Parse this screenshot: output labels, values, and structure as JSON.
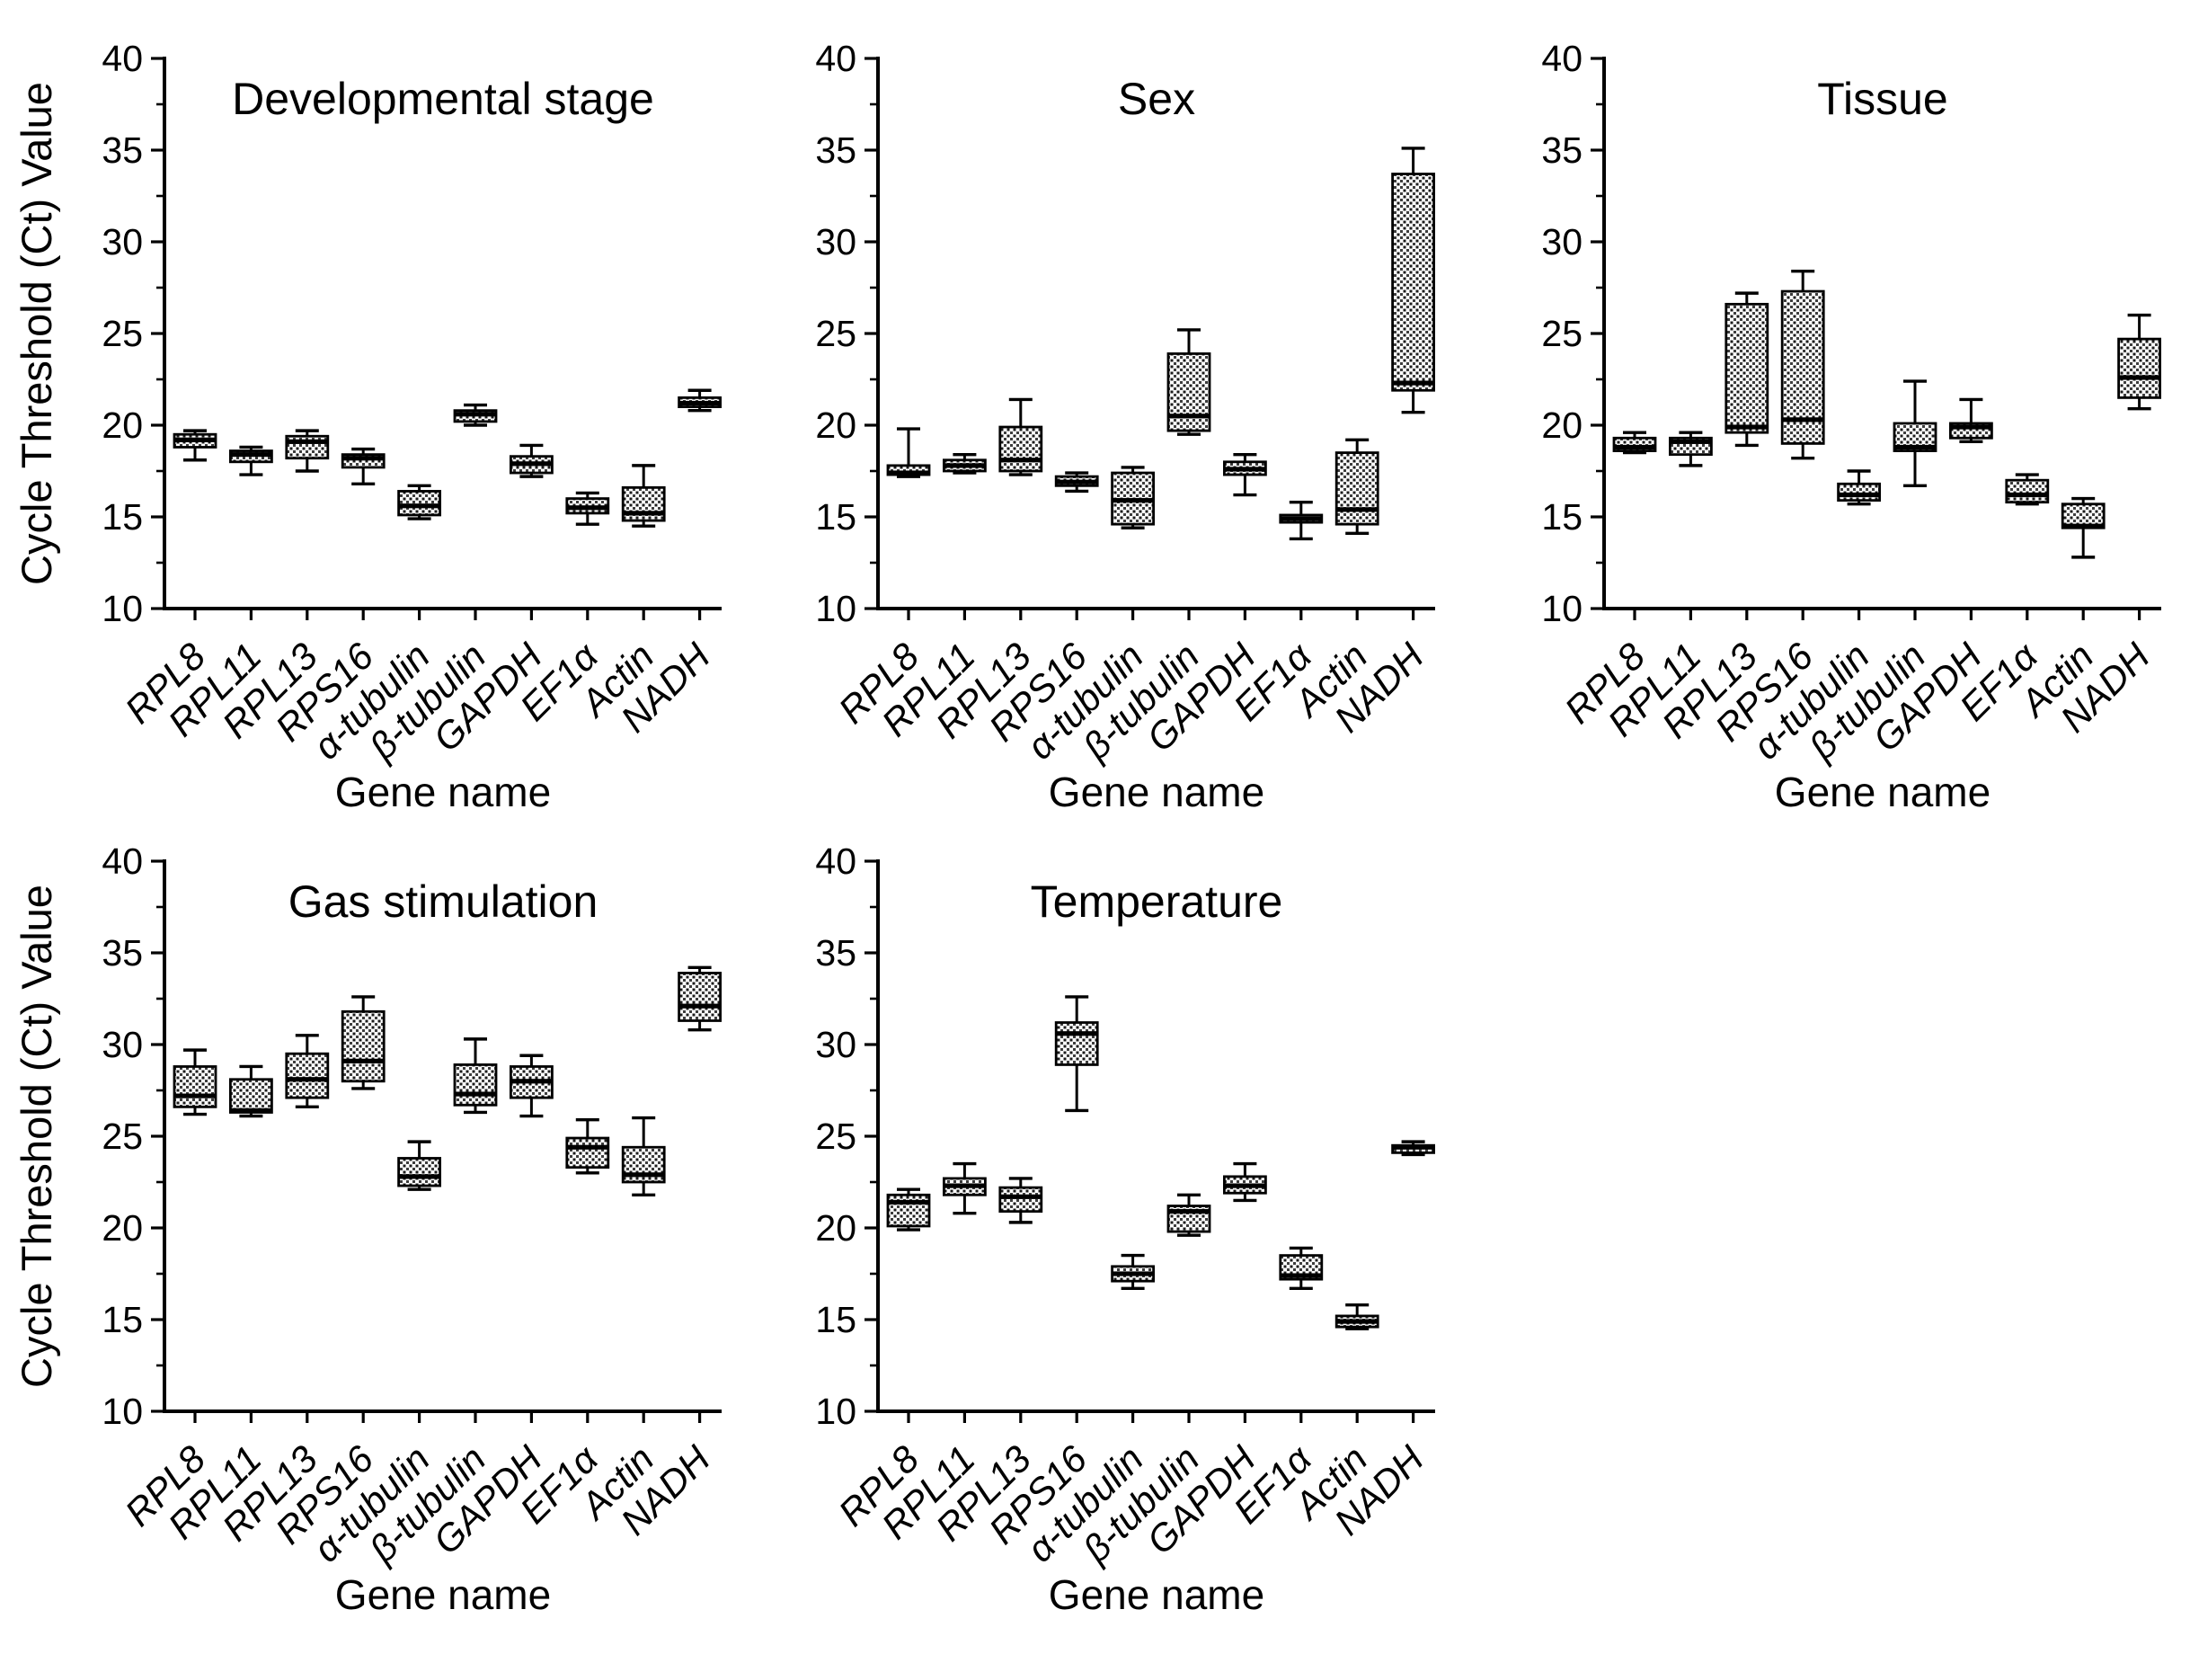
{
  "figure": {
    "ylabel": "Cycle Threshold (Ct) Value",
    "xlabel": "Gene name",
    "genes": [
      "RPL8",
      "RPL11",
      "RPL13",
      "RPS16",
      "α-tubulin",
      "β-tubulin",
      "GAPDH",
      "EF1α",
      "Actin",
      "NADH"
    ]
  },
  "colors": {
    "ink": "#000000",
    "background": "#ffffff"
  },
  "chart_data": [
    {
      "type": "box",
      "title": "Developmental stage",
      "row": 0,
      "col": 0,
      "show_ylabel": true,
      "xlabel": "Gene name",
      "ylabel": "Cycle Threshold (Ct) Value",
      "ylim": [
        10,
        40
      ],
      "yticks_major": [
        10,
        15,
        20,
        25,
        30,
        35,
        40
      ],
      "yticks_minor": [
        12.5,
        17.5,
        22.5,
        27.5,
        32.5,
        37.5
      ],
      "grid": false,
      "boxes": [
        {
          "gene": "RPL8",
          "low": 18.1,
          "q1": 18.8,
          "median": 19.2,
          "q3": 19.5,
          "high": 19.7
        },
        {
          "gene": "RPL11",
          "low": 17.3,
          "q1": 18.0,
          "median": 18.4,
          "q3": 18.6,
          "high": 18.8
        },
        {
          "gene": "RPL13",
          "low": 17.5,
          "q1": 18.2,
          "median": 19.1,
          "q3": 19.4,
          "high": 19.7
        },
        {
          "gene": "RPS16",
          "low": 16.8,
          "q1": 17.7,
          "median": 18.2,
          "q3": 18.4,
          "high": 18.7
        },
        {
          "gene": "α-tubulin",
          "low": 14.9,
          "q1": 15.1,
          "median": 15.6,
          "q3": 16.4,
          "high": 16.7
        },
        {
          "gene": "β-tubulin",
          "low": 20.0,
          "q1": 20.2,
          "median": 20.6,
          "q3": 20.8,
          "high": 21.1
        },
        {
          "gene": "GAPDH",
          "low": 17.2,
          "q1": 17.4,
          "median": 17.9,
          "q3": 18.3,
          "high": 18.9
        },
        {
          "gene": "EF1α",
          "low": 14.6,
          "q1": 15.2,
          "median": 15.5,
          "q3": 16.0,
          "high": 16.3
        },
        {
          "gene": "Actin",
          "low": 14.5,
          "q1": 14.8,
          "median": 15.2,
          "q3": 16.6,
          "high": 17.8
        },
        {
          "gene": "NADH",
          "low": 20.8,
          "q1": 21.0,
          "median": 21.2,
          "q3": 21.5,
          "high": 21.9
        }
      ]
    },
    {
      "type": "box",
      "title": "Sex",
      "row": 0,
      "col": 1,
      "show_ylabel": false,
      "xlabel": "Gene name",
      "ylabel": "Cycle Threshold (Ct) Value",
      "ylim": [
        10,
        40
      ],
      "yticks_major": [
        10,
        15,
        20,
        25,
        30,
        35,
        40
      ],
      "yticks_minor": [
        12.5,
        17.5,
        22.5,
        27.5,
        32.5,
        37.5
      ],
      "grid": false,
      "boxes": [
        {
          "gene": "RPL8",
          "low": 17.2,
          "q1": 17.3,
          "median": 17.4,
          "q3": 17.8,
          "high": 19.8
        },
        {
          "gene": "RPL11",
          "low": 17.4,
          "q1": 17.5,
          "median": 17.8,
          "q3": 18.1,
          "high": 18.4
        },
        {
          "gene": "RPL13",
          "low": 17.3,
          "q1": 17.5,
          "median": 18.1,
          "q3": 19.9,
          "high": 21.4
        },
        {
          "gene": "RPS16",
          "low": 16.4,
          "q1": 16.7,
          "median": 16.9,
          "q3": 17.2,
          "high": 17.4
        },
        {
          "gene": "α-tubulin",
          "low": 14.4,
          "q1": 14.6,
          "median": 15.9,
          "q3": 17.4,
          "high": 17.7
        },
        {
          "gene": "β-tubulin",
          "low": 19.5,
          "q1": 19.7,
          "median": 20.5,
          "q3": 23.9,
          "high": 25.2
        },
        {
          "gene": "GAPDH",
          "low": 16.2,
          "q1": 17.3,
          "median": 17.6,
          "q3": 18.0,
          "high": 18.4
        },
        {
          "gene": "EF1α",
          "low": 13.8,
          "q1": 14.7,
          "median": 14.9,
          "q3": 15.1,
          "high": 15.8
        },
        {
          "gene": "Actin",
          "low": 14.1,
          "q1": 14.6,
          "median": 15.4,
          "q3": 18.5,
          "high": 19.2
        },
        {
          "gene": "NADH",
          "low": 20.7,
          "q1": 21.9,
          "median": 22.3,
          "q3": 33.7,
          "high": 35.1
        }
      ]
    },
    {
      "type": "box",
      "title": "Tissue",
      "row": 0,
      "col": 2,
      "show_ylabel": false,
      "xlabel": "Gene name",
      "ylabel": "Cycle Threshold (Ct) Value",
      "ylim": [
        10,
        40
      ],
      "yticks_major": [
        10,
        15,
        20,
        25,
        30,
        35,
        40
      ],
      "yticks_minor": [
        12.5,
        17.5,
        22.5,
        27.5,
        32.5,
        37.5
      ],
      "grid": false,
      "boxes": [
        {
          "gene": "RPL8",
          "low": 18.5,
          "q1": 18.6,
          "median": 18.8,
          "q3": 19.3,
          "high": 19.6
        },
        {
          "gene": "RPL11",
          "low": 17.8,
          "q1": 18.4,
          "median": 19.1,
          "q3": 19.3,
          "high": 19.6
        },
        {
          "gene": "RPL13",
          "low": 18.9,
          "q1": 19.6,
          "median": 19.9,
          "q3": 26.6,
          "high": 27.2
        },
        {
          "gene": "RPS16",
          "low": 18.2,
          "q1": 19.0,
          "median": 20.3,
          "q3": 27.3,
          "high": 28.4
        },
        {
          "gene": "α-tubulin",
          "low": 15.7,
          "q1": 15.9,
          "median": 16.2,
          "q3": 16.8,
          "high": 17.5
        },
        {
          "gene": "β-tubulin",
          "low": 16.7,
          "q1": 18.6,
          "median": 18.8,
          "q3": 20.1,
          "high": 22.4
        },
        {
          "gene": "GAPDH",
          "low": 19.1,
          "q1": 19.3,
          "median": 19.9,
          "q3": 20.1,
          "high": 21.4
        },
        {
          "gene": "EF1α",
          "low": 15.7,
          "q1": 15.8,
          "median": 16.2,
          "q3": 17.0,
          "high": 17.3
        },
        {
          "gene": "Actin",
          "low": 12.8,
          "q1": 14.4,
          "median": 14.5,
          "q3": 15.7,
          "high": 16.0
        },
        {
          "gene": "NADH",
          "low": 20.9,
          "q1": 21.5,
          "median": 22.6,
          "q3": 24.7,
          "high": 26.0
        }
      ]
    },
    {
      "type": "box",
      "title": "Gas stimulation",
      "row": 1,
      "col": 0,
      "show_ylabel": true,
      "xlabel": "Gene name",
      "ylabel": "Cycle Threshold (Ct) Value",
      "ylim": [
        10,
        40
      ],
      "yticks_major": [
        10,
        15,
        20,
        25,
        30,
        35,
        40
      ],
      "yticks_minor": [
        12.5,
        17.5,
        22.5,
        27.5,
        32.5,
        37.5
      ],
      "grid": false,
      "boxes": [
        {
          "gene": "RPL8",
          "low": 26.2,
          "q1": 26.6,
          "median": 27.2,
          "q3": 28.8,
          "high": 29.7
        },
        {
          "gene": "RPL11",
          "low": 26.1,
          "q1": 26.3,
          "median": 26.4,
          "q3": 28.1,
          "high": 28.8
        },
        {
          "gene": "RPL13",
          "low": 26.6,
          "q1": 27.1,
          "median": 28.1,
          "q3": 29.5,
          "high": 30.5
        },
        {
          "gene": "RPS16",
          "low": 27.6,
          "q1": 28.0,
          "median": 29.1,
          "q3": 31.8,
          "high": 32.6
        },
        {
          "gene": "α-tubulin",
          "low": 22.1,
          "q1": 22.3,
          "median": 22.8,
          "q3": 23.8,
          "high": 24.7
        },
        {
          "gene": "β-tubulin",
          "low": 26.3,
          "q1": 26.7,
          "median": 27.3,
          "q3": 28.9,
          "high": 30.3
        },
        {
          "gene": "GAPDH",
          "low": 26.1,
          "q1": 27.1,
          "median": 28.0,
          "q3": 28.8,
          "high": 29.4
        },
        {
          "gene": "EF1α",
          "low": 23.0,
          "q1": 23.3,
          "median": 24.4,
          "q3": 24.9,
          "high": 25.9
        },
        {
          "gene": "Actin",
          "low": 21.8,
          "q1": 22.5,
          "median": 22.9,
          "q3": 24.4,
          "high": 26.0
        },
        {
          "gene": "NADH",
          "low": 30.8,
          "q1": 31.3,
          "median": 32.1,
          "q3": 33.9,
          "high": 34.2
        }
      ]
    },
    {
      "type": "box",
      "title": "Temperature",
      "row": 1,
      "col": 1,
      "show_ylabel": false,
      "xlabel": "Gene name",
      "ylabel": "Cycle Threshold (Ct) Value",
      "ylim": [
        10,
        40
      ],
      "yticks_major": [
        10,
        15,
        20,
        25,
        30,
        35,
        40
      ],
      "yticks_minor": [
        12.5,
        17.5,
        22.5,
        27.5,
        32.5,
        37.5
      ],
      "grid": false,
      "boxes": [
        {
          "gene": "RPL8",
          "low": 19.9,
          "q1": 20.1,
          "median": 21.4,
          "q3": 21.8,
          "high": 22.1
        },
        {
          "gene": "RPL11",
          "low": 20.8,
          "q1": 21.8,
          "median": 22.3,
          "q3": 22.7,
          "high": 23.5
        },
        {
          "gene": "RPL13",
          "low": 20.3,
          "q1": 20.9,
          "median": 21.7,
          "q3": 22.2,
          "high": 22.7
        },
        {
          "gene": "RPS16",
          "low": 26.4,
          "q1": 28.9,
          "median": 30.6,
          "q3": 31.2,
          "high": 32.6
        },
        {
          "gene": "α-tubulin",
          "low": 16.7,
          "q1": 17.1,
          "median": 17.5,
          "q3": 17.9,
          "high": 18.5
        },
        {
          "gene": "β-tubulin",
          "low": 19.6,
          "q1": 19.8,
          "median": 20.9,
          "q3": 21.2,
          "high": 21.8
        },
        {
          "gene": "GAPDH",
          "low": 21.5,
          "q1": 21.9,
          "median": 22.3,
          "q3": 22.8,
          "high": 23.5
        },
        {
          "gene": "EF1α",
          "low": 16.7,
          "q1": 17.2,
          "median": 17.4,
          "q3": 18.5,
          "high": 18.9
        },
        {
          "gene": "Actin",
          "low": 14.5,
          "q1": 14.6,
          "median": 14.9,
          "q3": 15.2,
          "high": 15.8
        },
        {
          "gene": "NADH",
          "low": 24.0,
          "q1": 24.1,
          "median": 24.4,
          "q3": 24.5,
          "high": 24.7
        }
      ]
    }
  ]
}
